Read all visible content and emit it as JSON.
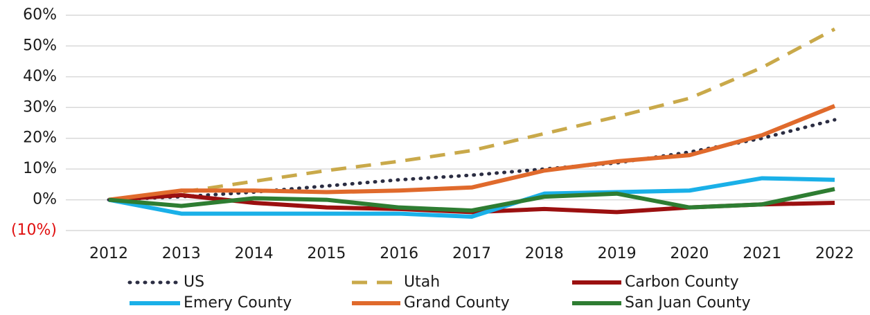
{
  "chart_data": {
    "type": "line",
    "categories": [
      "2012",
      "2013",
      "2014",
      "2015",
      "2016",
      "2017",
      "2018",
      "2019",
      "2020",
      "2021",
      "2022"
    ],
    "series": [
      {
        "name": "US",
        "color": "#2b2d42",
        "dash": "dotted",
        "values": [
          0,
          1,
          2.5,
          4.5,
          6.5,
          8,
          10,
          12,
          15.5,
          20,
          26
        ]
      },
      {
        "name": "Utah",
        "color": "#c9a94a",
        "dash": "dashed",
        "values": [
          0,
          2.5,
          6,
          9.5,
          12.5,
          16,
          21.5,
          27,
          33,
          43,
          55.5
        ]
      },
      {
        "name": "Carbon County",
        "color": "#9b1010",
        "dash": "solid",
        "values": [
          0,
          1.5,
          -1,
          -2.5,
          -3,
          -4,
          -3,
          -4,
          -2.5,
          -1.5,
          -1
        ]
      },
      {
        "name": "Emery County",
        "color": "#1ab0e8",
        "dash": "solid",
        "values": [
          0,
          -4.5,
          -4.5,
          -4.5,
          -4.5,
          -5.5,
          2,
          2.5,
          3,
          7,
          6.5
        ]
      },
      {
        "name": "Grand County",
        "color": "#e06a2c",
        "dash": "solid",
        "values": [
          0,
          3,
          3,
          2.5,
          3,
          4,
          9.5,
          12.5,
          14.5,
          21,
          30.5
        ]
      },
      {
        "name": "San Juan County",
        "color": "#2e7d32",
        "dash": "solid",
        "values": [
          0,
          -2,
          0.5,
          0,
          -2.5,
          -3.5,
          1,
          2,
          -2.5,
          -1.5,
          3.5
        ]
      }
    ],
    "ylim": [
      -10,
      60
    ],
    "yticks": [
      {
        "value": -10,
        "label": "(10%)"
      },
      {
        "value": 0,
        "label": "0%"
      },
      {
        "value": 10,
        "label": "10%"
      },
      {
        "value": 20,
        "label": "20%"
      },
      {
        "value": 30,
        "label": "30%"
      },
      {
        "value": 40,
        "label": "40%"
      },
      {
        "value": 50,
        "label": "50%"
      },
      {
        "value": 60,
        "label": "60%"
      }
    ],
    "grid": true,
    "legend": "bottom"
  }
}
